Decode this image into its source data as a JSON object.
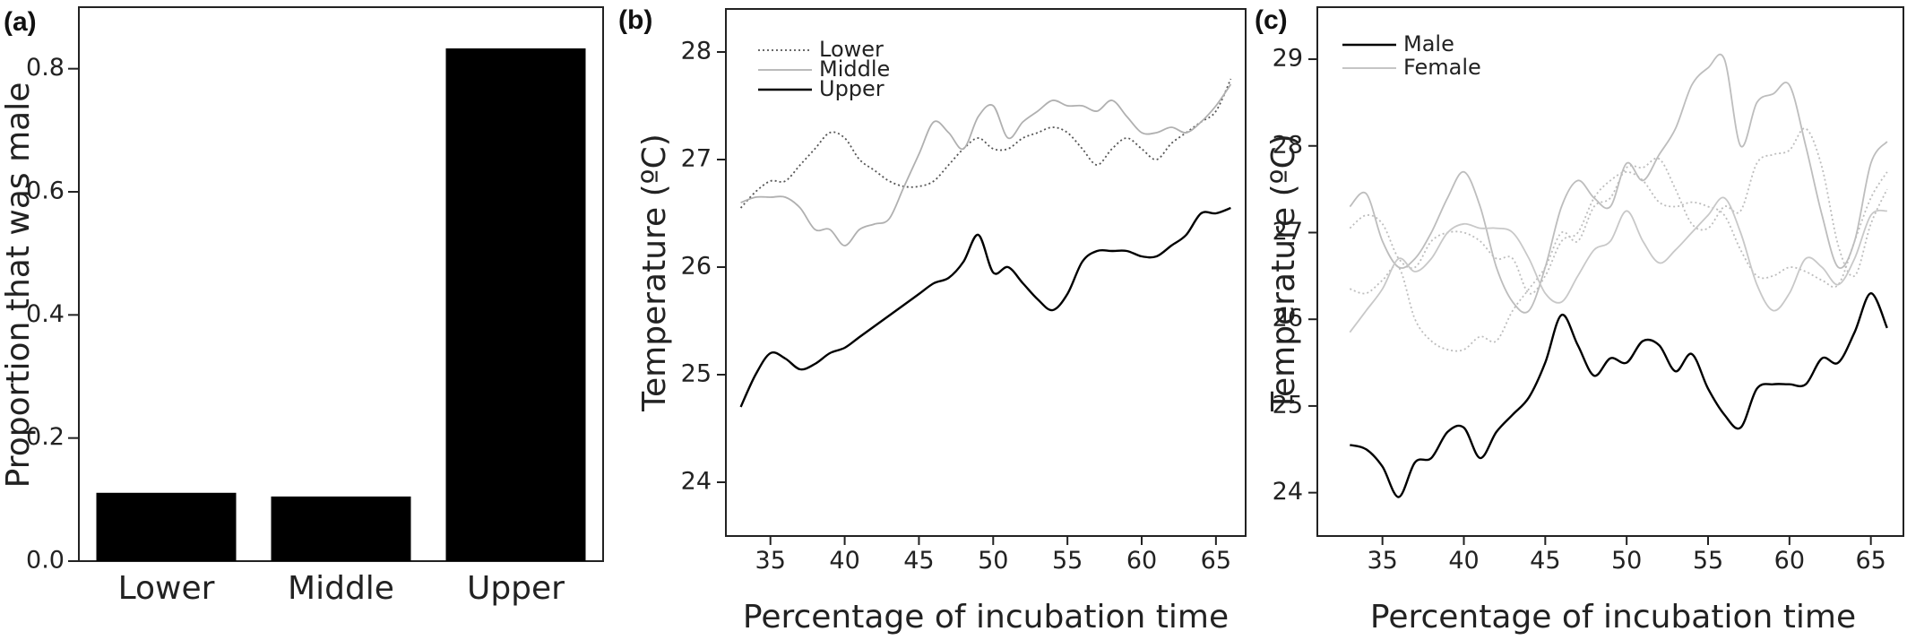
{
  "panels": {
    "a": {
      "label": "(a)"
    },
    "b": {
      "label": "(b)"
    },
    "c": {
      "label": "(c)"
    }
  },
  "chart_data": [
    {
      "type": "bar",
      "panel": "(a)",
      "categories": [
        "Lower",
        "Middle",
        "Upper"
      ],
      "values": [
        0.111,
        0.105,
        0.833
      ],
      "ylabel": "Proportion that was male",
      "xlabel": "",
      "ylim": [
        0,
        0.9
      ],
      "yticks": [
        "0.0",
        "0.2",
        "0.4",
        "0.6",
        "0.8"
      ],
      "ytick_values": [
        0,
        0.2,
        0.4,
        0.6,
        0.8
      ],
      "bar_color": "#000000"
    },
    {
      "type": "line",
      "panel": "(b)",
      "xlabel": "Percentage of incubation time",
      "ylabel": "Temperature (ºC)",
      "xlim": [
        32,
        67
      ],
      "ylim": [
        23.5,
        28.4
      ],
      "xticks": [
        35,
        40,
        45,
        50,
        55,
        60,
        65
      ],
      "yticks": [
        24,
        25,
        26,
        27,
        28
      ],
      "legend": "top-left",
      "series": [
        {
          "name": "Lower",
          "style": "dotted",
          "color": "#555555",
          "x": [
            33,
            34,
            35,
            36,
            37,
            38,
            39,
            40,
            41,
            42,
            43,
            44,
            45,
            46,
            47,
            48,
            49,
            50,
            51,
            52,
            53,
            54,
            55,
            56,
            57,
            58,
            59,
            60,
            61,
            62,
            63,
            64,
            65,
            66
          ],
          "y": [
            26.55,
            26.7,
            26.8,
            26.8,
            26.95,
            27.1,
            27.25,
            27.2,
            27.0,
            26.9,
            26.8,
            26.75,
            26.75,
            26.8,
            26.95,
            27.1,
            27.2,
            27.1,
            27.1,
            27.2,
            27.25,
            27.3,
            27.25,
            27.1,
            26.95,
            27.1,
            27.2,
            27.1,
            27.0,
            27.15,
            27.25,
            27.35,
            27.45,
            27.75
          ]
        },
        {
          "name": "Middle",
          "style": "solid",
          "color": "#b0b0b0",
          "x": [
            33,
            34,
            35,
            36,
            37,
            38,
            39,
            40,
            41,
            42,
            43,
            44,
            45,
            46,
            47,
            48,
            49,
            50,
            51,
            52,
            53,
            54,
            55,
            56,
            57,
            58,
            59,
            60,
            61,
            62,
            63,
            64,
            65,
            66
          ],
          "y": [
            26.6,
            26.65,
            26.65,
            26.65,
            26.55,
            26.35,
            26.35,
            26.2,
            26.35,
            26.4,
            26.45,
            26.75,
            27.05,
            27.35,
            27.25,
            27.1,
            27.4,
            27.5,
            27.2,
            27.35,
            27.45,
            27.55,
            27.5,
            27.5,
            27.45,
            27.55,
            27.4,
            27.25,
            27.25,
            27.3,
            27.25,
            27.35,
            27.5,
            27.7
          ]
        },
        {
          "name": "Upper",
          "style": "solid",
          "color": "#000000",
          "x": [
            33,
            34,
            35,
            36,
            37,
            38,
            39,
            40,
            41,
            42,
            43,
            44,
            45,
            46,
            47,
            48,
            49,
            50,
            51,
            52,
            53,
            54,
            55,
            56,
            57,
            58,
            59,
            60,
            61,
            62,
            63,
            64,
            65,
            66
          ],
          "y": [
            24.7,
            25.0,
            25.2,
            25.15,
            25.05,
            25.1,
            25.2,
            25.25,
            25.35,
            25.45,
            25.55,
            25.65,
            25.75,
            25.85,
            25.9,
            26.05,
            26.3,
            25.95,
            26.0,
            25.85,
            25.7,
            25.6,
            25.75,
            26.05,
            26.15,
            26.15,
            26.15,
            26.1,
            26.1,
            26.2,
            26.3,
            26.5,
            26.5,
            26.55
          ]
        }
      ]
    },
    {
      "type": "line",
      "panel": "(c)",
      "xlabel": "Percentage of incubation time",
      "ylabel": "Temperature (ºC)",
      "xlim": [
        31,
        67
      ],
      "ylim": [
        23.5,
        29.6
      ],
      "xticks": [
        35,
        40,
        45,
        50,
        55,
        60,
        65
      ],
      "yticks": [
        24,
        25,
        26,
        27,
        28,
        29
      ],
      "legend": "top-left",
      "series": [
        {
          "name": "Male",
          "style": "solid",
          "color": "#000000",
          "x": [
            33,
            34,
            35,
            36,
            37,
            38,
            39,
            40,
            41,
            42,
            43,
            44,
            45,
            46,
            47,
            48,
            49,
            50,
            51,
            52,
            53,
            54,
            55,
            56,
            57,
            58,
            59,
            60,
            61,
            62,
            63,
            64,
            65,
            66
          ],
          "y": [
            24.55,
            24.5,
            24.3,
            23.95,
            24.35,
            24.4,
            24.7,
            24.75,
            24.4,
            24.7,
            24.9,
            25.1,
            25.5,
            26.05,
            25.7,
            25.35,
            25.55,
            25.5,
            25.75,
            25.7,
            25.4,
            25.6,
            25.2,
            24.9,
            24.75,
            25.2,
            25.25,
            25.25,
            25.25,
            25.55,
            25.5,
            25.85,
            26.3,
            25.9
          ]
        },
        {
          "name": "Female",
          "style": "solid",
          "color": "#bdbdbd",
          "x": [
            33,
            34,
            35,
            36,
            37,
            38,
            39,
            40,
            41,
            42,
            43,
            44,
            45,
            46,
            47,
            48,
            49,
            50,
            51,
            52,
            53,
            54,
            55,
            56,
            57,
            58,
            59,
            60,
            61,
            62,
            63,
            64,
            65,
            66
          ],
          "y": [
            27.3,
            27.45,
            26.9,
            26.6,
            26.7,
            27.0,
            27.4,
            27.7,
            27.3,
            26.6,
            26.2,
            26.1,
            26.6,
            27.3,
            27.6,
            27.4,
            27.3,
            27.8,
            27.6,
            27.9,
            28.2,
            28.7,
            28.9,
            29.0,
            28.0,
            28.5,
            28.6,
            28.7,
            28.0,
            27.2,
            26.6,
            26.9,
            27.8,
            28.05
          ]
        },
        {
          "name": "Female",
          "style": "dotted",
          "color": "#bdbdbd",
          "x": [
            33,
            34,
            35,
            36,
            37,
            38,
            39,
            40,
            41,
            42,
            43,
            44,
            45,
            46,
            47,
            48,
            49,
            50,
            51,
            52,
            53,
            54,
            55,
            56,
            57,
            58,
            59,
            60,
            61,
            62,
            63,
            64,
            65,
            66
          ],
          "y": [
            27.05,
            27.2,
            27.1,
            26.7,
            26.6,
            26.9,
            27.0,
            27.0,
            26.9,
            26.7,
            26.7,
            26.3,
            26.5,
            26.9,
            27.0,
            27.4,
            27.6,
            27.7,
            27.6,
            27.35,
            27.3,
            27.35,
            27.3,
            27.2,
            26.8,
            26.5,
            26.5,
            26.6,
            26.55,
            26.45,
            26.4,
            26.9,
            27.4,
            27.7
          ]
        },
        {
          "name": "Female",
          "style": "dotted",
          "color": "#bdbdbd",
          "x": [
            33,
            34,
            35,
            36,
            37,
            38,
            39,
            40,
            41,
            42,
            43,
            44,
            45,
            46,
            47,
            48,
            49,
            50,
            51,
            52,
            53,
            54,
            55,
            56,
            57,
            58,
            59,
            60,
            61,
            62,
            63,
            64,
            65,
            66
          ],
          "y": [
            26.35,
            26.3,
            26.45,
            26.6,
            26.0,
            25.75,
            25.65,
            25.65,
            25.8,
            25.75,
            26.1,
            26.35,
            26.6,
            27.0,
            26.9,
            27.3,
            27.4,
            27.75,
            27.75,
            27.85,
            27.5,
            27.1,
            27.05,
            27.3,
            27.25,
            27.8,
            27.9,
            27.95,
            28.2,
            27.75,
            26.85,
            26.5,
            27.1,
            27.5
          ]
        },
        {
          "name": "Female",
          "style": "solid",
          "color": "#c8c8c8",
          "x": [
            33,
            34,
            35,
            36,
            37,
            38,
            39,
            40,
            41,
            42,
            43,
            44,
            45,
            46,
            47,
            48,
            49,
            50,
            51,
            52,
            53,
            54,
            55,
            56,
            57,
            58,
            59,
            60,
            61,
            62,
            63,
            64,
            65,
            66
          ],
          "y": [
            25.85,
            26.1,
            26.35,
            26.7,
            26.55,
            26.7,
            27.0,
            27.1,
            27.05,
            27.05,
            27.0,
            26.7,
            26.3,
            26.2,
            26.5,
            26.8,
            26.9,
            27.25,
            26.9,
            26.65,
            26.8,
            27.0,
            27.2,
            27.4,
            27.0,
            26.4,
            26.1,
            26.3,
            26.7,
            26.6,
            26.4,
            26.7,
            27.2,
            27.25
          ]
        }
      ]
    }
  ]
}
